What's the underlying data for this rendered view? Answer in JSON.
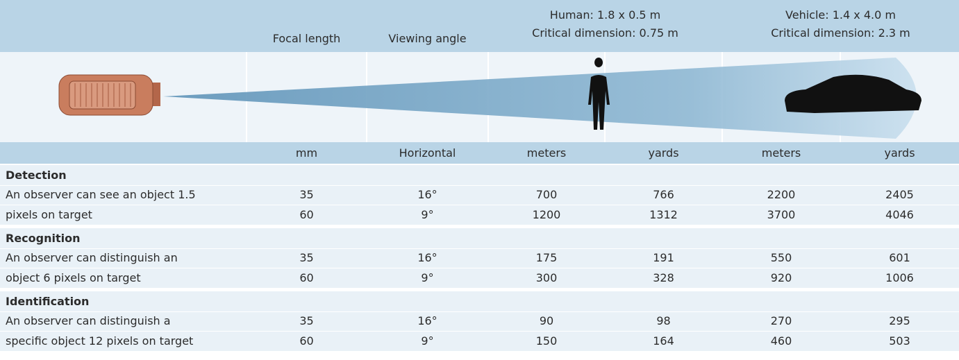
{
  "header": {
    "focal_length": "Focal length",
    "viewing_angle": "Viewing angle",
    "human": [
      "Human: 1.8 x 0.5 m",
      "Critical dimension: 0.75 m"
    ],
    "vehicle": [
      "Vehicle: 1.4 x 4.0 m",
      "Critical dimension: 2.3 m"
    ]
  },
  "units": [
    "mm",
    "Horizontal",
    "meters",
    "yards",
    "meters",
    "yards"
  ],
  "groups": [
    {
      "title": "Detection",
      "description": [
        "An observer can see an object 1.5",
        "pixels on target"
      ],
      "rows": [
        [
          "35",
          "16°",
          "700",
          "766",
          "2200",
          "2405"
        ],
        [
          "60",
          "9°",
          "1200",
          "1312",
          "3700",
          "4046"
        ]
      ]
    },
    {
      "title": "Recognition",
      "description": [
        "An observer can distinguish an",
        "object 6 pixels on target"
      ],
      "rows": [
        [
          "35",
          "16°",
          "175",
          "191",
          "550",
          "601"
        ],
        [
          "60",
          "9°",
          "300",
          "328",
          "920",
          "1006"
        ]
      ]
    },
    {
      "title": "Identification",
      "description": [
        "An observer can distinguish a",
        "specific object 12 pixels on target"
      ],
      "rows": [
        [
          "35",
          "16°",
          "90",
          "98",
          "270",
          "295"
        ],
        [
          "60",
          "9°",
          "150",
          "164",
          "460",
          "503"
        ]
      ]
    }
  ]
}
